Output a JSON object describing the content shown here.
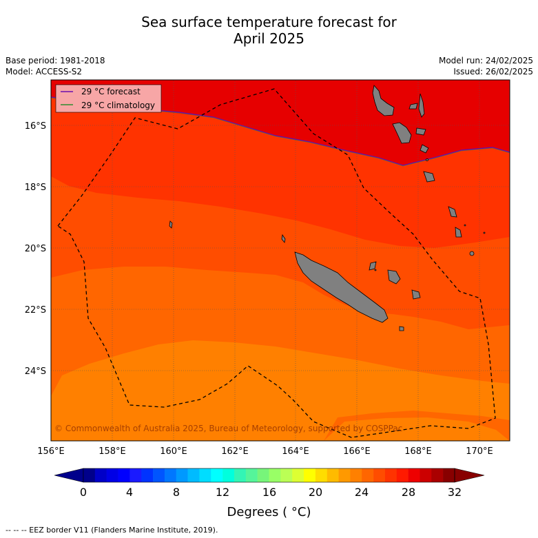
{
  "title": {
    "line1": "Sea surface temperature forecast for",
    "line2": "April 2025"
  },
  "meta": {
    "base_period": "Base period: 1981-2018",
    "model": "Model: ACCESS-S2",
    "model_run": "Model run: 24/02/2025",
    "issued": "Issued: 26/02/2025"
  },
  "legend": {
    "forecast": "29 °C  forecast",
    "climatology": "29 °C  climatology",
    "forecast_color": "#6a0dad",
    "climatology_color": "#2e8b2e"
  },
  "axes": {
    "x_ticks": [
      "156°E",
      "158°E",
      "160°E",
      "162°E",
      "164°E",
      "166°E",
      "168°E",
      "170°E"
    ],
    "y_ticks": [
      "16°S",
      "18°S",
      "20°S",
      "22°S",
      "24°S"
    ]
  },
  "copyright": "© Commonwealth of Australia 2025, Bureau of Meteorology, supported by COSPPac",
  "colorbar": {
    "tick_labels": [
      "0",
      "4",
      "8",
      "12",
      "16",
      "20",
      "24",
      "28",
      "32"
    ],
    "units": "Degrees ( °C)",
    "colors": [
      "#00008b",
      "#0000c8",
      "#0000e6",
      "#0000ff",
      "#1a1aff",
      "#0033ff",
      "#0055ff",
      "#0077ff",
      "#0099ff",
      "#00bbff",
      "#00ddff",
      "#00ffff",
      "#00ffdd",
      "#33f5b5",
      "#55f59a",
      "#77f57a",
      "#99ff66",
      "#bbff55",
      "#ddff33",
      "#ffff00",
      "#ffdd00",
      "#ffbb00",
      "#ff9900",
      "#ff8000",
      "#ff6600",
      "#ff4d00",
      "#ff3300",
      "#ff1a00",
      "#ee0000",
      "#cc0000",
      "#aa0000",
      "#880000"
    ]
  },
  "footer": "--  --  -- EEZ border V11 (Flanders Marine Institute, 2019)."
}
